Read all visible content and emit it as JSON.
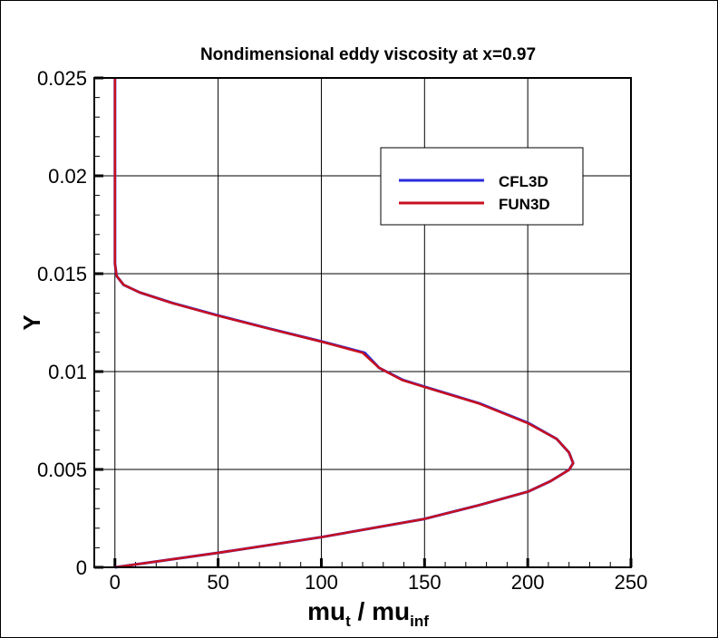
{
  "chart_data": {
    "type": "line",
    "title": "Nondimensional eddy viscosity at x=0.97",
    "xlabel": {
      "main": "mu",
      "sub1": "t",
      "sep": " / mu",
      "sub2": "inf"
    },
    "ylabel": "Y",
    "xlim": [
      -10,
      250
    ],
    "ylim": [
      0,
      0.025
    ],
    "xticks": [
      0,
      50,
      100,
      150,
      200,
      250
    ],
    "xtick_labels": [
      "0",
      "50",
      "100",
      "150",
      "200",
      "250"
    ],
    "yticks": [
      0,
      0.005,
      0.01,
      0.015,
      0.02,
      0.025
    ],
    "ytick_labels": [
      "0",
      "0.005",
      "0.01",
      "0.015",
      "0.02",
      "0.025"
    ],
    "grid": true,
    "legend_placement": "upper-right",
    "series": [
      {
        "name": "CFL3D",
        "color": "#2b2bdc",
        "x": [
          0,
          50,
          100,
          150,
          176,
          200,
          211,
          220,
          222,
          220,
          214,
          200.5,
          176.5,
          150.5,
          139.5,
          128,
          121,
          100.5,
          75,
          50.5,
          28,
          12,
          4.2,
          0.8,
          0,
          0
        ],
        "y": [
          0,
          0.00074,
          0.00154,
          0.00247,
          0.00316,
          0.00386,
          0.0044,
          0.00498,
          0.00532,
          0.00586,
          0.00656,
          0.00736,
          0.00838,
          0.00921,
          0.00957,
          0.01019,
          0.01096,
          0.01153,
          0.01219,
          0.01285,
          0.0135,
          0.01404,
          0.01443,
          0.01489,
          0.01551,
          0.025
        ]
      },
      {
        "name": "FUN3D",
        "color": "#c8101e",
        "x": [
          0,
          50,
          100,
          150,
          176,
          200,
          211,
          220,
          222,
          220,
          214,
          200,
          176,
          150,
          139,
          128,
          120,
          100,
          74.6,
          50,
          27.7,
          12,
          4.2,
          0.8,
          0,
          0
        ],
        "y": [
          0,
          0.00074,
          0.00154,
          0.00247,
          0.00316,
          0.00386,
          0.0044,
          0.00498,
          0.00532,
          0.00586,
          0.00656,
          0.00736,
          0.00838,
          0.00921,
          0.00957,
          0.01019,
          0.01096,
          0.01153,
          0.01219,
          0.01285,
          0.0135,
          0.01404,
          0.01443,
          0.01489,
          0.01551,
          0.025
        ]
      }
    ]
  }
}
